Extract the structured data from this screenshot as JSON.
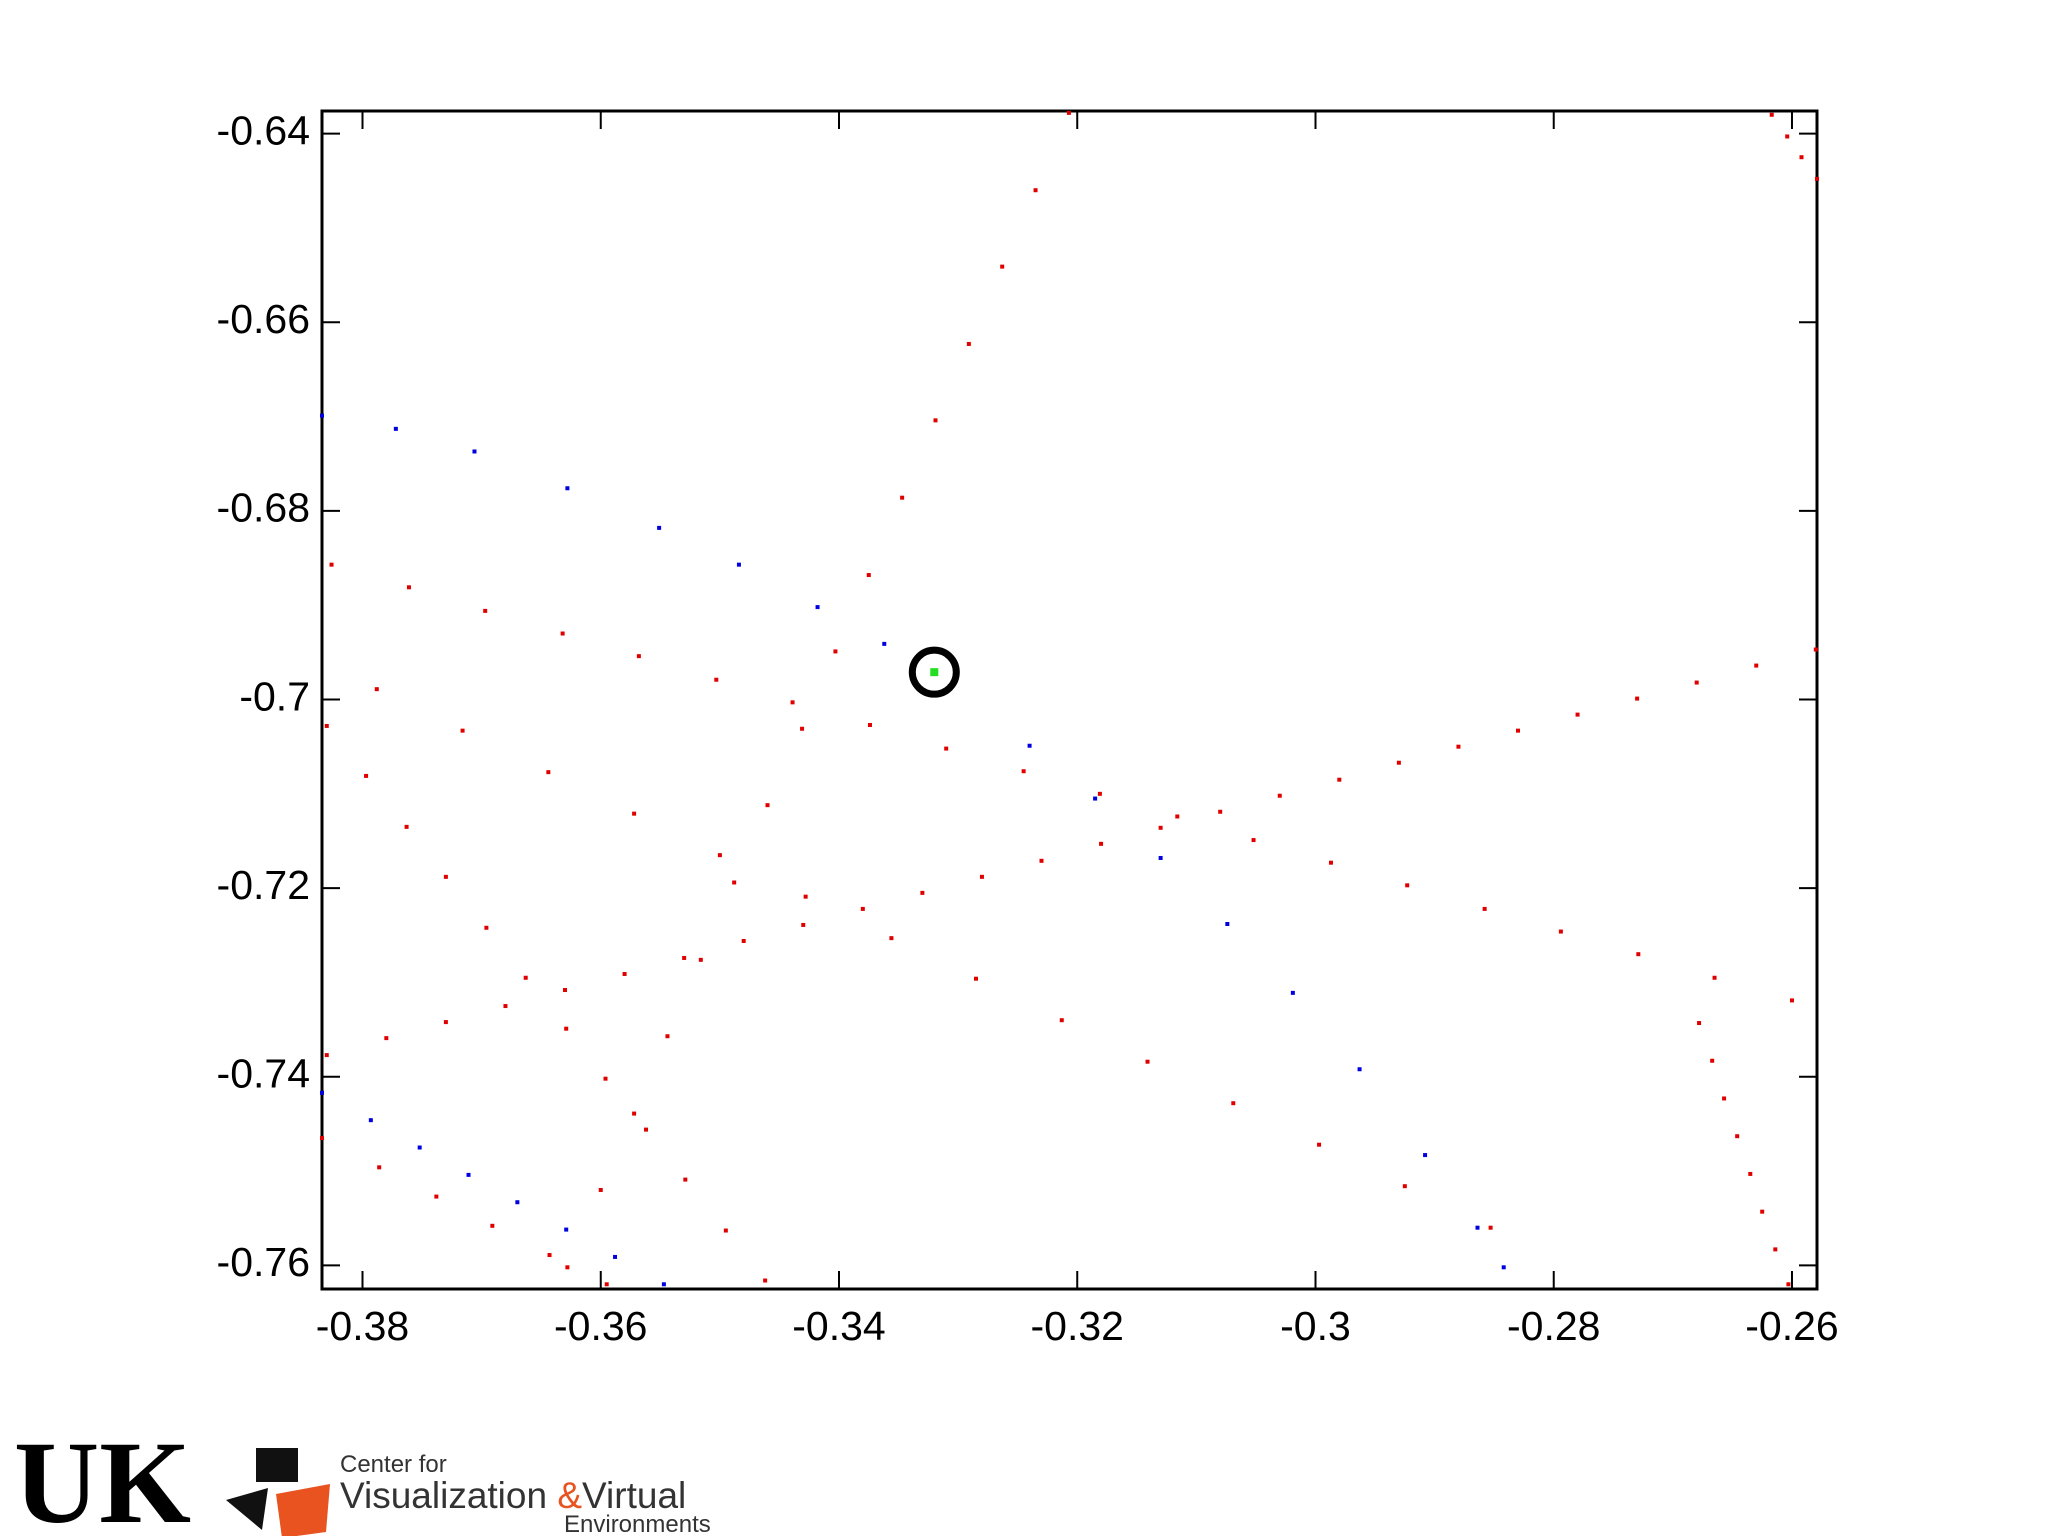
{
  "chart_data": {
    "type": "scatter",
    "xlim": [
      -0.3834,
      -0.2579
    ],
    "ylim": [
      -0.7625,
      -0.6376
    ],
    "xticks": [
      -0.38,
      -0.36,
      -0.34,
      -0.32,
      -0.3,
      -0.28,
      -0.26
    ],
    "yticks": [
      -0.64,
      -0.66,
      -0.68,
      -0.7,
      -0.72,
      -0.74,
      -0.76
    ],
    "series": [
      {
        "color": "#0000e0",
        "x": [
          -0.3834,
          -0.3772,
          -0.3706,
          -0.3628,
          -0.3551,
          -0.3484,
          -0.3418,
          -0.3362,
          -0.3307,
          -0.324,
          -0.3185,
          -0.313,
          -0.3074,
          -0.3019,
          -0.2963,
          -0.2908,
          -0.2864,
          -0.2842
        ],
        "values": [
          -0.6699,
          -0.6713,
          -0.6737,
          -0.6776,
          -0.6818,
          -0.6857,
          -0.6902,
          -0.6941,
          -0.6986,
          -0.7049,
          -0.7105,
          -0.7168,
          -0.7238,
          -0.7311,
          -0.7392,
          -0.7483,
          -0.756,
          -0.7602
        ]
      },
      {
        "color": "#e00000",
        "x": [
          -0.383,
          -0.378,
          -0.373,
          -0.368,
          -0.363,
          -0.358,
          -0.353,
          -0.348,
          -0.343,
          -0.338,
          -0.333,
          -0.328,
          -0.323,
          -0.318,
          -0.313,
          -0.308,
          -0.303,
          -0.298,
          -0.293,
          -0.288,
          -0.283,
          -0.278,
          -0.273,
          -0.268,
          -0.263,
          -0.258
        ],
        "values": [
          -0.7377,
          -0.7359,
          -0.7342,
          -0.7325,
          -0.7308,
          -0.7291,
          -0.7274,
          -0.7256,
          -0.7239,
          -0.7222,
          -0.7205,
          -0.7188,
          -0.7171,
          -0.7153,
          -0.7136,
          -0.7119,
          -0.7102,
          -0.7085,
          -0.7067,
          -0.705,
          -0.7033,
          -0.7016,
          -0.6999,
          -0.6982,
          -0.6964,
          -0.6947
        ]
      },
      {
        "color": "#e00000",
        "x": [
          -0.3207,
          -0.3235,
          -0.3263,
          -0.3291,
          -0.3319,
          -0.3347,
          -0.3375,
          -0.3403,
          -0.3431,
          -0.346,
          -0.3488,
          -0.3516,
          -0.3544,
          -0.3572,
          -0.36,
          -0.3628
        ],
        "values": [
          -0.6378,
          -0.646,
          -0.6541,
          -0.6623,
          -0.6704,
          -0.6786,
          -0.6868,
          -0.6949,
          -0.7031,
          -0.7112,
          -0.7194,
          -0.7276,
          -0.7357,
          -0.7439,
          -0.752,
          -0.7602
        ]
      },
      {
        "color": "#e00000",
        "x": [
          -0.383,
          -0.3797,
          -0.3763,
          -0.373,
          -0.3696,
          -0.3663,
          -0.3629,
          -0.3596,
          -0.3562,
          -0.3529,
          -0.3495,
          -0.3462
        ],
        "values": [
          -0.7028,
          -0.7081,
          -0.7135,
          -0.7188,
          -0.7242,
          -0.7295,
          -0.7349,
          -0.7402,
          -0.7456,
          -0.7509,
          -0.7563,
          -0.7616
        ]
      },
      {
        "color": "#0000e0",
        "x": [
          -0.3834,
          -0.3793,
          -0.3752,
          -0.3711,
          -0.367,
          -0.3629,
          -0.3588,
          -0.3547
        ],
        "values": [
          -0.7417,
          -0.7446,
          -0.7475,
          -0.7504,
          -0.7533,
          -0.7562,
          -0.7591,
          -0.762
        ]
      },
      {
        "color": "#e00000",
        "x": [
          -0.3834,
          -0.3786,
          -0.3738,
          -0.3691,
          -0.3643,
          -0.3595
        ],
        "values": [
          -0.7465,
          -0.7496,
          -0.7527,
          -0.7558,
          -0.7589,
          -0.762
        ]
      },
      {
        "color": "#e00000",
        "x": [
          -0.2617,
          -0.2604,
          -0.2592,
          -0.2579
        ],
        "values": [
          -0.638,
          -0.6403,
          -0.6425,
          -0.6448
        ]
      },
      {
        "color": "#e00000",
        "x": [
          -0.3826,
          -0.3761,
          -0.3697,
          -0.3632,
          -0.3568,
          -0.3503,
          -0.3439,
          -0.3374,
          -0.331,
          -0.3245,
          -0.3181,
          -0.3116,
          -0.3052,
          -0.2987,
          -0.2923,
          -0.2858,
          -0.2794,
          -0.2729,
          -0.2665,
          -0.26
        ],
        "values": [
          -0.6857,
          -0.6881,
          -0.6906,
          -0.693,
          -0.6954,
          -0.6979,
          -0.7003,
          -0.7027,
          -0.7052,
          -0.7076,
          -0.71,
          -0.7124,
          -0.7149,
          -0.7173,
          -0.7197,
          -0.7222,
          -0.7246,
          -0.727,
          -0.7295,
          -0.7319
        ]
      },
      {
        "color": "#e00000",
        "x": [
          -0.3788,
          -0.3716,
          -0.3644,
          -0.3572,
          -0.35,
          -0.3428,
          -0.3356,
          -0.3285,
          -0.3213,
          -0.3141,
          -0.3069,
          -0.2997,
          -0.2925,
          -0.2853
        ],
        "values": [
          -0.6989,
          -0.7033,
          -0.7077,
          -0.7121,
          -0.7165,
          -0.7209,
          -0.7253,
          -0.7296,
          -0.734,
          -0.7384,
          -0.7428,
          -0.7472,
          -0.7516,
          -0.756
        ]
      },
      {
        "color": "#e00000",
        "x": [
          -0.2678,
          -0.2667,
          -0.2657,
          -0.2646,
          -0.2635,
          -0.2625,
          -0.2614,
          -0.2603
        ],
        "values": [
          -0.7343,
          -0.7383,
          -0.7423,
          -0.7463,
          -0.7503,
          -0.7543,
          -0.7583,
          -0.762
        ]
      },
      {
        "color": "#22dd22",
        "highlight": true,
        "x": [
          -0.332
        ],
        "values": [
          -0.6971
        ]
      }
    ]
  },
  "logo": {
    "university": "UK",
    "line1": "Center for",
    "line2a": "Visualization",
    "amp": "&",
    "line2b": "Virtual",
    "line3": "Environments"
  }
}
